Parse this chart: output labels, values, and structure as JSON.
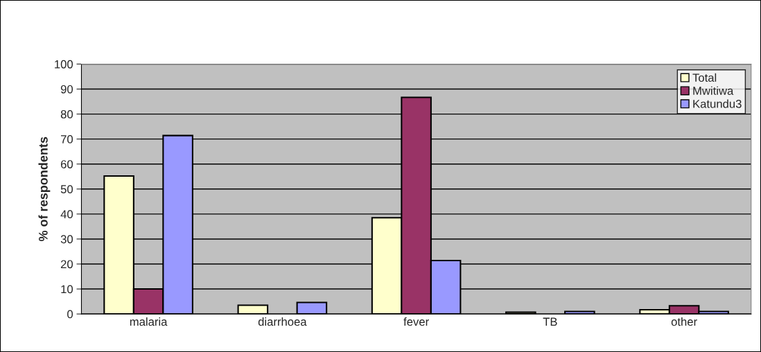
{
  "chart_data": {
    "type": "bar",
    "ylabel": "% of respondents",
    "categories": [
      "malaria",
      "diarrhoea",
      "fever",
      "TB",
      "other"
    ],
    "series": [
      {
        "name": "Total",
        "color": "#ffffcc",
        "values": [
          55.2,
          3.5,
          38.5,
          0.7,
          1.7
        ]
      },
      {
        "name": "Mwitiwa",
        "color": "#993366",
        "values": [
          10,
          0,
          86.7,
          0,
          3.3
        ]
      },
      {
        "name": "Katundu3",
        "color": "#9999ff",
        "values": [
          71.4,
          4.6,
          21.4,
          1.0,
          1.0
        ]
      }
    ],
    "ylim": [
      0,
      100
    ],
    "yticks": [
      0,
      10,
      20,
      30,
      40,
      50,
      60,
      70,
      80,
      90,
      100
    ],
    "grid": "y",
    "legend": "top right"
  }
}
